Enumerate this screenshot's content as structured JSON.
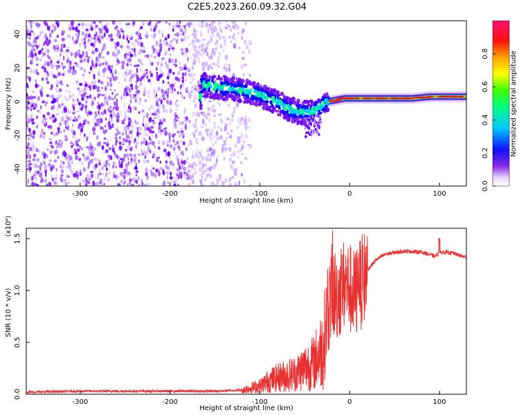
{
  "title": "C2E5.2023.260.09.32.G04",
  "chart_data": [
    {
      "type": "heatmap",
      "name": "spectrogram",
      "title": "C2E5.2023.260.09.32.G04",
      "xlabel": "Height of straight line (km)",
      "ylabel": "Frequency (Hz)",
      "xlim": [
        -360,
        130
      ],
      "ylim": [
        -50,
        48
      ],
      "xticks": [
        -300,
        -200,
        -100,
        0,
        100
      ],
      "xtick_labels": [
        "-300",
        "-200",
        "-100",
        "0",
        "100"
      ],
      "yticks": [
        -40,
        -20,
        0,
        20,
        40
      ],
      "ytick_labels": [
        "-40",
        "-20",
        "0",
        "20",
        "40"
      ],
      "noise_region_x": [
        -360,
        -120
      ],
      "signal_track": [
        {
          "x": -165,
          "y": 10
        },
        {
          "x": -150,
          "y": 9
        },
        {
          "x": -135,
          "y": 8
        },
        {
          "x": -120,
          "y": 7
        },
        {
          "x": -105,
          "y": 5
        },
        {
          "x": -95,
          "y": 3
        },
        {
          "x": -85,
          "y": 1
        },
        {
          "x": -75,
          "y": -2
        },
        {
          "x": -65,
          "y": -5
        },
        {
          "x": -55,
          "y": -6
        },
        {
          "x": -45,
          "y": -7
        },
        {
          "x": -35,
          "y": -4
        },
        {
          "x": -25,
          "y": 0
        },
        {
          "x": -15,
          "y": 1
        },
        {
          "x": -5,
          "y": 2
        },
        {
          "x": 10,
          "y": 2
        },
        {
          "x": 30,
          "y": 2
        },
        {
          "x": 50,
          "y": 2
        },
        {
          "x": 70,
          "y": 2
        },
        {
          "x": 90,
          "y": 3
        },
        {
          "x": 110,
          "y": 3
        },
        {
          "x": 130,
          "y": 3
        }
      ],
      "colorbar": {
        "label": "Normalized spectral amplitude",
        "range": [
          0.0,
          1.0
        ],
        "ticks": [
          0.0,
          0.2,
          0.4,
          0.6,
          0.8
        ],
        "tick_labels": [
          "0.0",
          "0.2",
          "0.4",
          "0.6",
          "0.8"
        ]
      }
    },
    {
      "type": "line",
      "name": "snr",
      "xlabel": "Height of straight line (km)",
      "ylabel": "SNR (10 * v/v)",
      "exponent_label": "(x10⁴)",
      "xlim": [
        -360,
        130
      ],
      "ylim": [
        0,
        1.6
      ],
      "xticks": [
        -300,
        -200,
        -100,
        0,
        100
      ],
      "xtick_labels": [
        "-300",
        "-200",
        "-100",
        "0",
        "100"
      ],
      "yticks": [
        0.0,
        0.5,
        1.0,
        1.5
      ],
      "ytick_labels": [
        "0.0",
        "0.5",
        "1.0",
        "1.5"
      ],
      "series": [
        {
          "name": "SNR",
          "color": "#e83030",
          "x": [
            -360,
            -300,
            -250,
            -200,
            -150,
            -120,
            -100,
            -90,
            -80,
            -70,
            -60,
            -50,
            -40,
            -30,
            -25,
            -20,
            -15,
            -10,
            -5,
            0,
            5,
            10,
            20,
            30,
            40,
            60,
            80,
            95,
            100,
            105,
            115,
            125,
            130
          ],
          "y": [
            0.02,
            0.03,
            0.03,
            0.03,
            0.03,
            0.04,
            0.08,
            0.13,
            0.16,
            0.18,
            0.2,
            0.26,
            0.3,
            0.45,
            0.75,
            1.0,
            0.95,
            1.0,
            1.08,
            1.02,
            0.95,
            1.02,
            1.2,
            1.3,
            1.35,
            1.38,
            1.37,
            1.33,
            1.36,
            1.37,
            1.36,
            1.33,
            1.32
          ]
        }
      ]
    }
  ]
}
